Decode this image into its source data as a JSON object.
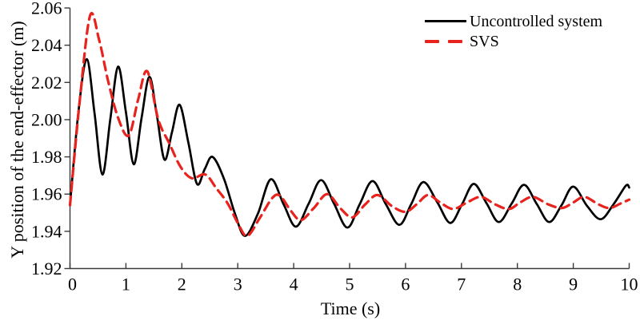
{
  "figure": {
    "background": "#ffffff",
    "axis_color": "#3a3a3a",
    "text_color": "#000000"
  },
  "chart_data": {
    "type": "line",
    "title": "",
    "xlabel": "Time (s)",
    "ylabel": "Y position of the end-effector (m)",
    "xlim": [
      0,
      10
    ],
    "ylim": [
      1.92,
      2.06
    ],
    "xticks": [
      0,
      1,
      2,
      3,
      4,
      5,
      6,
      7,
      8,
      9,
      10
    ],
    "xtick_labels": [
      "0",
      "1",
      "2",
      "3",
      "4",
      "5",
      "6",
      "7",
      "8",
      "9",
      "10"
    ],
    "yticks": [
      1.92,
      1.94,
      1.96,
      1.98,
      2.0,
      2.02,
      2.04,
      2.06
    ],
    "ytick_labels": [
      "1.92",
      "1.94",
      "1.96",
      "1.98",
      "2.00",
      "2.02",
      "2.04",
      "2.06"
    ],
    "grid": false,
    "legend_position": "top-right",
    "series": [
      {
        "name": "Uncontrolled system",
        "color": "#000000",
        "style": "solid",
        "width": 2.7,
        "points": [
          [
            0.0,
            1.954
          ],
          [
            0.15,
            2.004
          ],
          [
            0.3,
            2.0325
          ],
          [
            0.44,
            2.003
          ],
          [
            0.58,
            1.9705
          ],
          [
            0.72,
            2.0
          ],
          [
            0.86,
            2.0285
          ],
          [
            1.0,
            2.004
          ],
          [
            1.14,
            1.976
          ],
          [
            1.28,
            2.001
          ],
          [
            1.42,
            2.023
          ],
          [
            1.555,
            2.002
          ],
          [
            1.69,
            1.9785
          ],
          [
            1.825,
            1.9935
          ],
          [
            1.96,
            2.008
          ],
          [
            2.115,
            1.988
          ],
          [
            2.27,
            1.9655
          ],
          [
            2.41,
            1.9735
          ],
          [
            2.55,
            1.98
          ],
          [
            2.75,
            1.9685
          ],
          [
            2.95,
            1.9495
          ],
          [
            3.13,
            1.9375
          ],
          [
            3.36,
            1.9495
          ],
          [
            3.59,
            1.968
          ],
          [
            3.82,
            1.9545
          ],
          [
            4.04,
            1.9425
          ],
          [
            4.27,
            1.955
          ],
          [
            4.49,
            1.9675
          ],
          [
            4.72,
            1.955
          ],
          [
            4.96,
            1.942
          ],
          [
            5.18,
            1.9545
          ],
          [
            5.41,
            1.967
          ],
          [
            5.65,
            1.9545
          ],
          [
            5.89,
            1.9435
          ],
          [
            6.1,
            1.9545
          ],
          [
            6.32,
            1.9665
          ],
          [
            6.57,
            1.9555
          ],
          [
            6.8,
            1.9445
          ],
          [
            7.01,
            1.9545
          ],
          [
            7.22,
            1.9655
          ],
          [
            7.45,
            1.955
          ],
          [
            7.67,
            1.945
          ],
          [
            7.9,
            1.955
          ],
          [
            8.12,
            1.965
          ],
          [
            8.35,
            1.9545
          ],
          [
            8.57,
            1.945
          ],
          [
            8.79,
            1.954
          ],
          [
            9.0,
            1.964
          ],
          [
            9.25,
            1.9535
          ],
          [
            9.49,
            1.9465
          ],
          [
            9.72,
            1.9545
          ],
          [
            9.94,
            1.9645
          ],
          [
            10.0,
            1.9635
          ]
        ]
      },
      {
        "name": "SVS",
        "color": "#e8231e",
        "style": "dashed",
        "width": 3.2,
        "dash": [
          11,
          7
        ],
        "points": [
          [
            0.0,
            1.954
          ],
          [
            0.18,
            2.012
          ],
          [
            0.36,
            2.056
          ],
          [
            0.52,
            2.043
          ],
          [
            0.68,
            2.021
          ],
          [
            0.86,
            2.001
          ],
          [
            1.05,
            1.9915
          ],
          [
            1.22,
            2.011
          ],
          [
            1.38,
            2.026
          ],
          [
            1.58,
            2.0
          ],
          [
            1.78,
            1.987
          ],
          [
            1.98,
            1.9745
          ],
          [
            2.18,
            1.9685
          ],
          [
            2.42,
            1.9705
          ],
          [
            2.62,
            1.963
          ],
          [
            2.82,
            1.955
          ],
          [
            3.0,
            1.9445
          ],
          [
            3.17,
            1.9375
          ],
          [
            3.4,
            1.9475
          ],
          [
            3.62,
            1.958
          ],
          [
            3.76,
            1.959
          ],
          [
            3.95,
            1.951
          ],
          [
            4.13,
            1.946
          ],
          [
            4.36,
            1.9525
          ],
          [
            4.6,
            1.96
          ],
          [
            4.83,
            1.9525
          ],
          [
            5.05,
            1.9475
          ],
          [
            5.28,
            1.9545
          ],
          [
            5.5,
            1.9595
          ],
          [
            5.76,
            1.9535
          ],
          [
            6.0,
            1.9505
          ],
          [
            6.2,
            1.9545
          ],
          [
            6.4,
            1.9595
          ],
          [
            6.62,
            1.9555
          ],
          [
            6.85,
            1.952
          ],
          [
            7.1,
            1.9555
          ],
          [
            7.35,
            1.9585
          ],
          [
            7.6,
            1.9545
          ],
          [
            7.85,
            1.952
          ],
          [
            8.05,
            1.9555
          ],
          [
            8.28,
            1.9585
          ],
          [
            8.55,
            1.9545
          ],
          [
            8.8,
            1.9525
          ],
          [
            9.0,
            1.9555
          ],
          [
            9.2,
            1.9585
          ],
          [
            9.45,
            1.9545
          ],
          [
            9.65,
            1.9525
          ],
          [
            9.85,
            1.955
          ],
          [
            10.0,
            1.957
          ]
        ]
      }
    ]
  }
}
